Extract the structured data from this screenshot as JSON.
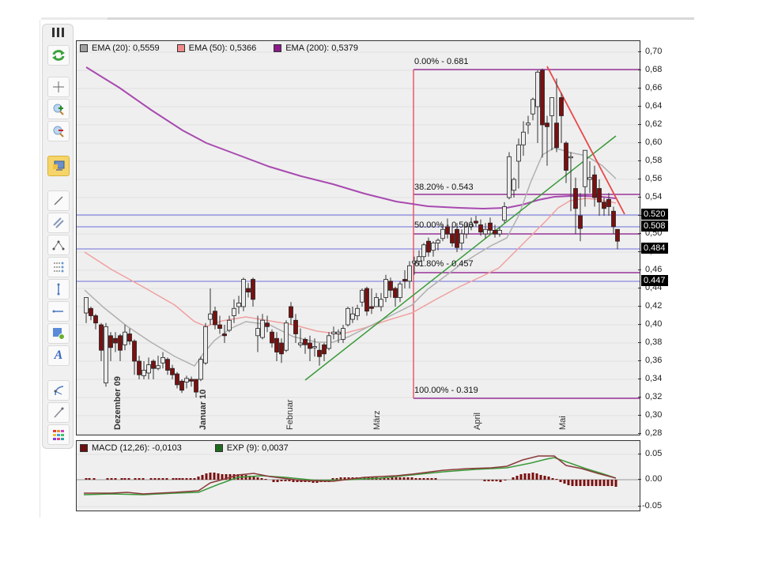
{
  "legend": {
    "ema20": {
      "label": "EMA (20): 0,5559",
      "color": "#a0a0a0"
    },
    "ema50": {
      "label": "EMA (50): 0,5366",
      "color": "#f08a8a"
    },
    "ema200": {
      "label": "EMA (200): 0,5379",
      "color": "#8b1a8b"
    }
  },
  "macd_legend": {
    "macd": {
      "label": "MACD (12,26): -0,0103",
      "color": "#6b0f0f"
    },
    "exp": {
      "label": "EXP (9): 0,0037",
      "color": "#1e6b1e"
    }
  },
  "price_axis": [
    "0,70",
    "0,68",
    "0,66",
    "0,64",
    "0,62",
    "0,60",
    "0,58",
    "0,56",
    "0,54",
    "0,52",
    "0,50",
    "0,48",
    "0,46",
    "0,44",
    "0,42",
    "0,40",
    "0,38",
    "0,36",
    "0,34",
    "0,32",
    "0,30",
    "0,28"
  ],
  "price_tags": [
    {
      "label": "0.520",
      "value": 0.52
    },
    {
      "label": "0.508",
      "value": 0.508
    },
    {
      "label": "0.484",
      "value": 0.484
    },
    {
      "label": "0.447",
      "value": 0.447
    }
  ],
  "macd_axis": [
    "0.05",
    "0.00",
    "-0.05"
  ],
  "fibonacci": [
    {
      "label": "0.00% - 0.681",
      "value": 0.681
    },
    {
      "label": "38.20% - 0.543",
      "value": 0.543
    },
    {
      "label": "50.00% - 0.500",
      "value": 0.5
    },
    {
      "label": "61.80% - 0.457",
      "value": 0.457
    },
    {
      "label": "100.00% - 0.319",
      "value": 0.319
    }
  ],
  "months": [
    {
      "label": "Dezember 09",
      "bold": true
    },
    {
      "label": "Januar 10",
      "bold": true
    },
    {
      "label": "Februar",
      "bold": false
    },
    {
      "label": "März",
      "bold": false
    },
    {
      "label": "April",
      "bold": false
    },
    {
      "label": "Mai",
      "bold": false
    }
  ],
  "toolbar": {
    "items": [
      "refresh",
      "crosshair",
      "zoom-in",
      "zoom-out",
      "display-settings",
      "line-tool",
      "channel-tool",
      "pitchfork-tool",
      "fibonacci-tool",
      "vertical-line-tool",
      "horizontal-line-tool",
      "rectangle-tool",
      "text-tool",
      "arc-tool",
      "ray-tool",
      "color-palette"
    ]
  },
  "colors": {
    "background": "#efefef",
    "bull_candle": "#e8e8e8",
    "bear_candle": "#7a1010",
    "fib_line": "#993399",
    "horizontal_line": "#6f6fdd",
    "trend_up": "#3a9a3a",
    "trend_down": "#e84848",
    "fib_vertical": "#e85a6a"
  }
}
